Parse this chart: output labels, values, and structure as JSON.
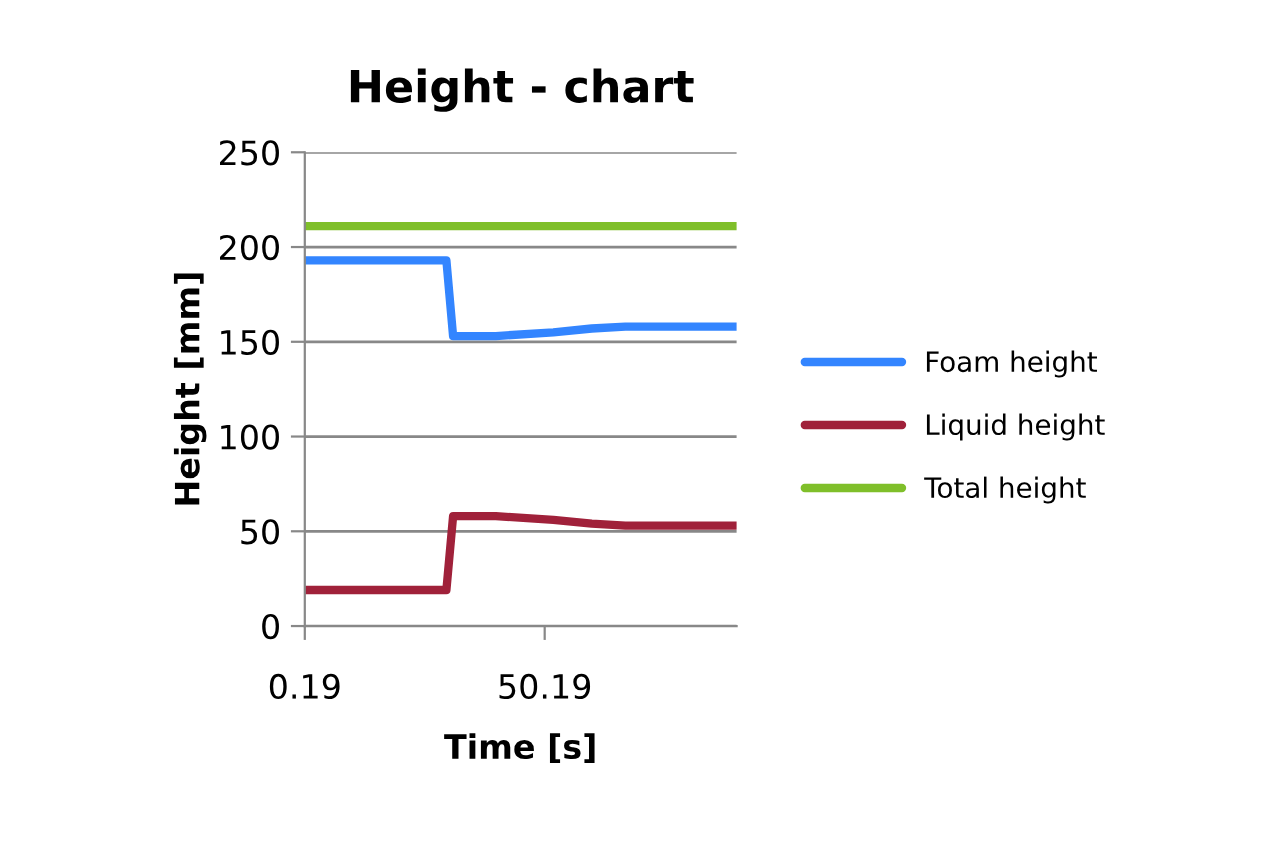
{
  "chart_data": {
    "type": "line",
    "title": "Height - chart",
    "xlabel": "Time [s]",
    "ylabel": "Height [mm]",
    "x": [
      0.19,
      29.7,
      31.1,
      40,
      52,
      60,
      67,
      90.19
    ],
    "series": [
      {
        "name": "Foam height",
        "color": "#3385ff",
        "values": [
          193,
          193,
          153,
          153,
          155,
          157,
          158,
          158
        ]
      },
      {
        "name": "Liquid height",
        "color": "#a0213a",
        "values": [
          19,
          19,
          58,
          58,
          56,
          54,
          53,
          53
        ]
      },
      {
        "name": "Total height",
        "color": "#7fbf2a",
        "values": [
          211,
          211,
          211,
          211,
          211,
          211,
          211,
          211
        ]
      }
    ],
    "xlim": [
      0.19,
      90.19
    ],
    "xticks": [
      0.19,
      50.19
    ],
    "ylim": [
      0,
      250
    ],
    "yticks": [
      0,
      50,
      100,
      150,
      200,
      250
    ],
    "grid": "y",
    "legend": "right",
    "marker": "none",
    "line_style": "solid"
  }
}
